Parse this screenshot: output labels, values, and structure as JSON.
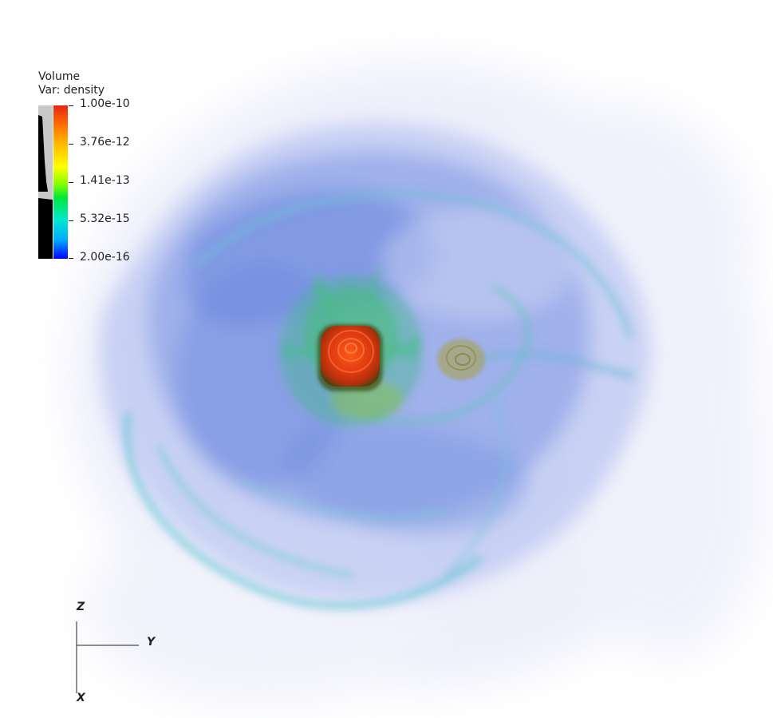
{
  "legend": {
    "title_line1": "Volume",
    "title_line2": "Var: density",
    "ticks": [
      "1.00e-10",
      "3.76e-12",
      "1.41e-13",
      "5.32e-15",
      "2.00e-16"
    ],
    "colormap": "hot_to_cold",
    "colors": [
      "#e62614",
      "#ff6a00",
      "#ffff00",
      "#00e838",
      "#00a8ff",
      "#0000ff"
    ]
  },
  "triad": {
    "z_label": "Z",
    "y_label": "Y",
    "x_label": "X"
  },
  "scene": {
    "background": "#ffffff",
    "core_color": "#e03a10",
    "secondary_color": "#a8a040",
    "cloud_color": "#5a7fe0"
  }
}
